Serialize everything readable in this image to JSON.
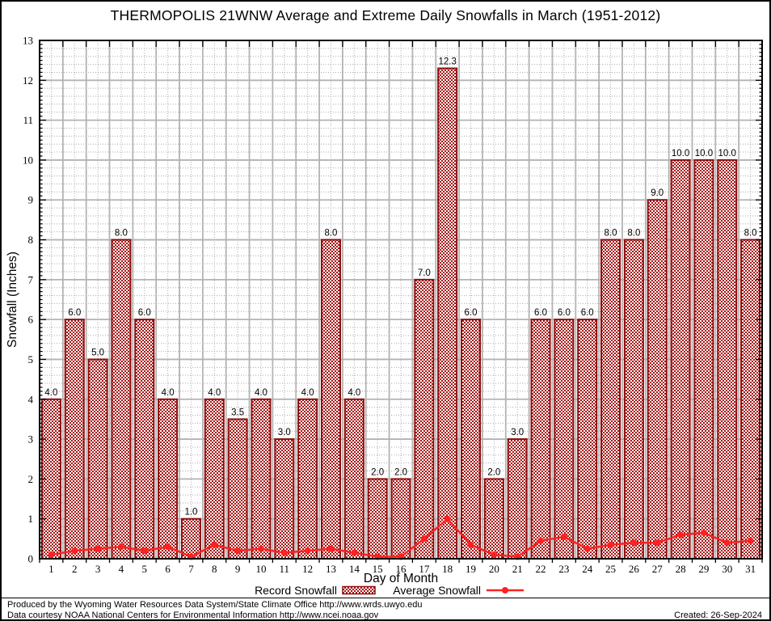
{
  "chart_data": {
    "type": "bar",
    "title": "THERMOPOLIS 21WNW Average and Extreme Daily Snowfalls in March (1951-2012)",
    "categories": [
      1,
      2,
      3,
      4,
      5,
      6,
      7,
      8,
      9,
      10,
      11,
      12,
      13,
      14,
      15,
      16,
      17,
      18,
      19,
      20,
      21,
      22,
      23,
      24,
      25,
      26,
      27,
      28,
      29,
      30,
      31
    ],
    "series": [
      {
        "name": "Record Snowfall",
        "type": "bar",
        "values": [
          4.0,
          6.0,
          5.0,
          8.0,
          6.0,
          4.0,
          1.0,
          4.0,
          3.5,
          4.0,
          3.0,
          4.0,
          8.0,
          4.0,
          2.0,
          2.0,
          7.0,
          12.3,
          6.0,
          2.0,
          3.0,
          6.0,
          6.0,
          6.0,
          8.0,
          8.0,
          9.0,
          10.0,
          10.0,
          10.0,
          8.0
        ]
      },
      {
        "name": "Average Snowfall",
        "type": "line",
        "values": [
          0.1,
          0.2,
          0.25,
          0.3,
          0.2,
          0.3,
          0.05,
          0.35,
          0.2,
          0.25,
          0.15,
          0.2,
          0.25,
          0.15,
          0.05,
          0.05,
          0.5,
          1.0,
          0.35,
          0.1,
          0.05,
          0.45,
          0.55,
          0.25,
          0.35,
          0.4,
          0.4,
          0.6,
          0.65,
          0.4,
          0.45
        ]
      }
    ],
    "xlabel": "Day of Month",
    "ylabel": "Snowfall (Inches)",
    "ylim": [
      0,
      13
    ],
    "yticks": [
      0,
      1,
      2,
      3,
      4,
      5,
      6,
      7,
      8,
      9,
      10,
      11,
      12,
      13
    ],
    "grid": true,
    "legend_position": "bottom",
    "bar_labels_decimals": 1,
    "colors": {
      "bar_fill": "#A51414",
      "bar_border": "#8F0D0D",
      "line": "#FF2020",
      "grid_major": "#B3B3B3",
      "grid_minor": "#ABABAB",
      "axis": "#000000",
      "text": "#000000"
    }
  },
  "footer": {
    "line1": "Produced by the Wyoming Water Resources Data System/State Climate Office http://www.wrds.uwyo.edu",
    "line2": "Data courtesy NOAA National Centers for Environmental Information http://www.ncei.noaa.gov",
    "created": "Created: 26-Sep-2024"
  }
}
